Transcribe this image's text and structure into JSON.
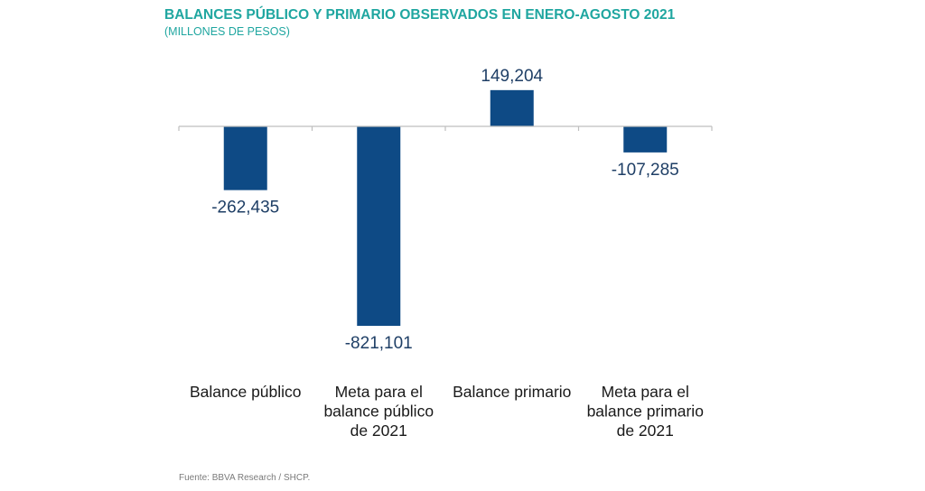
{
  "header": {
    "title": "BALANCES PÚBLICO Y PRIMARIO OBSERVADOS EN ENERO-AGOSTO 2021",
    "subtitle": "(MILLONES DE PESOS)"
  },
  "footer": {
    "source": "Fuente: BBVA Research / SHCP."
  },
  "colors": {
    "title": "#1fa6a0",
    "bar": "#0e4a85",
    "axis": "#bfbfbf",
    "text": "#1a1a1a",
    "value_label": "#1f3f66"
  },
  "chart_data": {
    "type": "bar",
    "categories": [
      [
        "Balance público"
      ],
      [
        "Meta para el",
        "balance público",
        "de 2021"
      ],
      [
        "Balance primario"
      ],
      [
        "Meta para el",
        "balance primario",
        "de 2021"
      ]
    ],
    "values": [
      -262435,
      -821101,
      149204,
      -107285
    ],
    "value_labels": [
      "-262,435",
      "-821,101",
      "149,204",
      "-107,285"
    ],
    "grid": false,
    "legend": "none"
  }
}
